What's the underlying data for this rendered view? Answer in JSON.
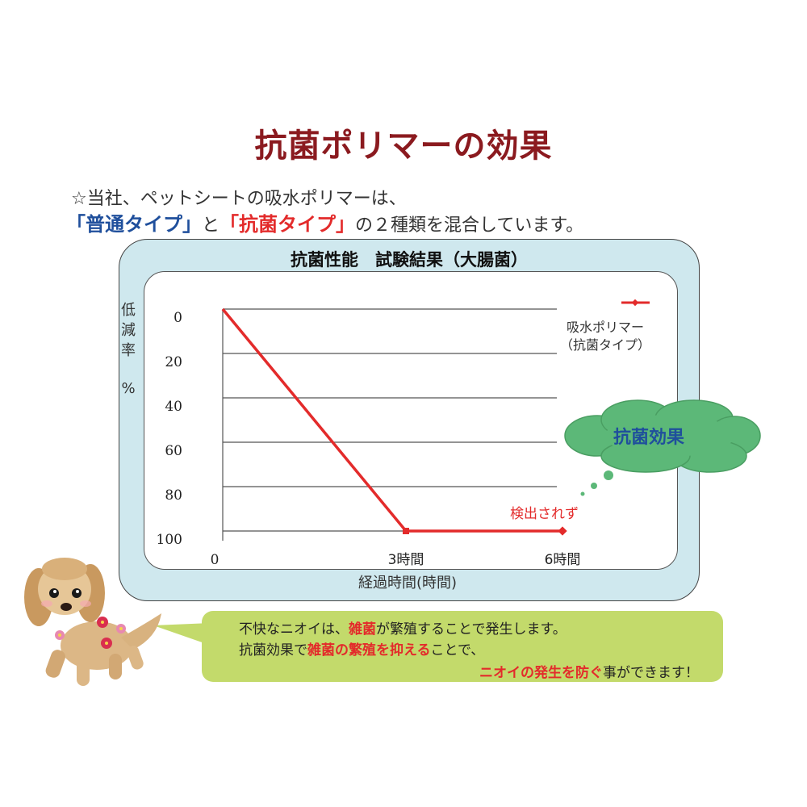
{
  "title": "抗菌ポリマーの効果",
  "intro": {
    "line1": "☆当社、ペットシートの吸水ポリマーは、",
    "line2": [
      {
        "text": "「普通タイプ」",
        "style": "blue"
      },
      {
        "text": "と",
        "style": "plain"
      },
      {
        "text": "「抗菌タイプ」",
        "style": "red"
      },
      {
        "text": "の２種類を混合しています。",
        "style": "plain"
      }
    ]
  },
  "colors": {
    "title": "#8b1a1f",
    "series": "#e32b2b",
    "panel": "#cfe8ee",
    "cloud": "#5cb878",
    "callout": "#c3da6b",
    "blue_text": "#1f4f9c"
  },
  "chart_data": {
    "type": "line",
    "title": "抗菌性能　試験結果（大腸菌）",
    "xlabel": "経過時間(時間)",
    "ylabel": [
      "低",
      "減",
      "率",
      "%"
    ],
    "categories": [
      "0",
      "3時間",
      "6時間"
    ],
    "y_ticks": [
      "0",
      "20",
      "40",
      "60",
      "80",
      "100"
    ],
    "ylim": [
      0,
      100
    ],
    "y_inverted": true,
    "grid": true,
    "legend_placement": "top-right",
    "series": [
      {
        "name": "吸水ポリマー（抗菌タイプ）",
        "legend_lines": [
          "吸水ポリマー",
          "（抗菌タイプ）"
        ],
        "values": [
          0,
          100,
          100
        ]
      }
    ],
    "annotations": {
      "cloud": "抗菌効果",
      "point_label": "検出されず"
    }
  },
  "callout": {
    "line1": [
      {
        "text": "不快なニオイは、",
        "red": false
      },
      {
        "text": "雑菌",
        "red": true
      },
      {
        "text": "が繁殖することで発生します。",
        "red": false
      }
    ],
    "line2": [
      {
        "text": "抗菌効果で",
        "red": false
      },
      {
        "text": "雑菌の繁殖を抑える",
        "red": true
      },
      {
        "text": "ことで、",
        "red": false
      }
    ],
    "line3": [
      {
        "text": "ニオイの発生を防ぐ",
        "red": true
      },
      {
        "text": "事ができます！",
        "red": false
      }
    ]
  }
}
